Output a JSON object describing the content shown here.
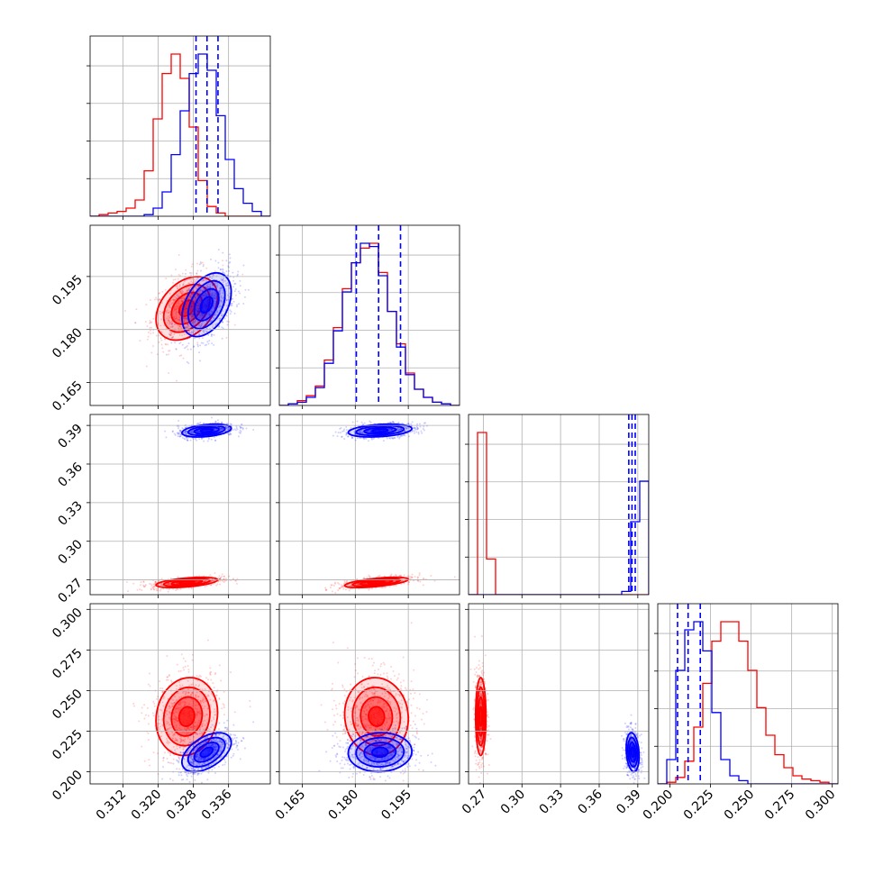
{
  "chart_data": {
    "type": "corner",
    "title": "",
    "parameters": [
      {
        "ticks": [
          "0.312",
          "0.320",
          "0.328",
          "0.336"
        ],
        "range": [
          0.3045,
          0.3455
        ]
      },
      {
        "ticks": [
          "0.165",
          "0.180",
          "0.195"
        ],
        "range": [
          0.1585,
          0.2095
        ]
      },
      {
        "ticks": [
          "0.27",
          "0.30",
          "0.33",
          "0.36",
          "0.39"
        ],
        "range": [
          0.2585,
          0.3985
        ]
      },
      {
        "ticks": [
          "0.200",
          "0.225",
          "0.250",
          "0.275",
          "0.300"
        ],
        "range": [
          0.1925,
          0.3035
        ]
      }
    ],
    "series": [
      {
        "color": "#ff0000",
        "quantiles": [],
        "mean": [
          0.3265,
          0.186,
          0.268,
          0.234
        ],
        "sd": [
          0.0035,
          0.0045,
          0.002,
          0.012
        ],
        "corr": [
          [
            1,
            0.35,
            0.5,
            0.1
          ],
          [
            0.35,
            1,
            0.6,
            -0.05
          ],
          [
            0.5,
            0.6,
            1,
            0.0
          ],
          [
            0.1,
            -0.05,
            0.0,
            1
          ]
        ],
        "hist": [
          {
            "lo": 0.3045,
            "hi": 0.3455,
            "counts": [
              0,
              1,
              2,
              3,
              5,
              10,
              28,
              60,
              88,
              100,
              85,
              55,
              22,
              6,
              2,
              0,
              0,
              0,
              0,
              0
            ]
          },
          {
            "lo": 0.1585,
            "hi": 0.2095,
            "counts": [
              0,
              1,
              3,
              6,
              12,
              28,
              48,
              72,
              88,
              97,
              100,
              82,
              58,
              38,
              20,
              10,
              5,
              2,
              1,
              0
            ]
          },
          {
            "lo": 0.2585,
            "hi": 0.3985,
            "counts": [
              0,
              100,
              22,
              0,
              0,
              0,
              0,
              0,
              0,
              0,
              0,
              0,
              0,
              0,
              0,
              0,
              0,
              0,
              0,
              0
            ]
          },
          {
            "lo": 0.1925,
            "hi": 0.3035,
            "counts": [
              0,
              1,
              4,
              14,
              35,
              62,
              88,
              100,
              100,
              88,
              70,
              47,
              30,
              18,
              10,
              5,
              3,
              2,
              1,
              0
            ]
          }
        ]
      },
      {
        "color": "#0000ff",
        "quantiles": [
          [
            0.3286,
            0.3311,
            0.3336
          ],
          [
            0.1803,
            0.1866,
            0.1928
          ],
          [
            0.383,
            0.3855,
            0.388
          ],
          [
            0.2047,
            0.2112,
            0.2187
          ]
        ],
        "mean": [
          0.331,
          0.187,
          0.386,
          0.212
        ],
        "sd": [
          0.0028,
          0.0045,
          0.0025,
          0.006
        ],
        "corr": [
          [
            1,
            0.4,
            0.35,
            0.5
          ],
          [
            0.4,
            1,
            0.3,
            0.05
          ],
          [
            0.35,
            0.3,
            1,
            -0.2
          ],
          [
            0.5,
            0.05,
            -0.2,
            1
          ]
        ],
        "hist": [
          {
            "lo": 0.3045,
            "hi": 0.3455,
            "counts": [
              0,
              0,
              0,
              0,
              0,
              0,
              1,
              5,
              15,
              38,
              65,
              88,
              100,
              90,
              62,
              35,
              17,
              8,
              3,
              0
            ]
          },
          {
            "lo": 0.1585,
            "hi": 0.2095,
            "counts": [
              0,
              1,
              2,
              5,
              11,
              26,
              46,
              70,
              88,
              100,
              98,
              80,
              58,
              36,
              19,
              10,
              5,
              2,
              1,
              0
            ]
          },
          {
            "lo": 0.2585,
            "hi": 0.3985,
            "counts": [
              0,
              0,
              0,
              0,
              0,
              0,
              0,
              0,
              0,
              0,
              0,
              0,
              0,
              0,
              0,
              0,
              0,
              2,
              45,
              70
            ]
          },
          {
            "lo": 0.1925,
            "hi": 0.3035,
            "counts": [
              0,
              15,
              70,
              95,
              100,
              82,
              44,
              15,
              5,
              2,
              0,
              0,
              0,
              0,
              0,
              0,
              0,
              0,
              0,
              0
            ]
          }
        ]
      }
    ],
    "grid": true,
    "legend": "none"
  }
}
